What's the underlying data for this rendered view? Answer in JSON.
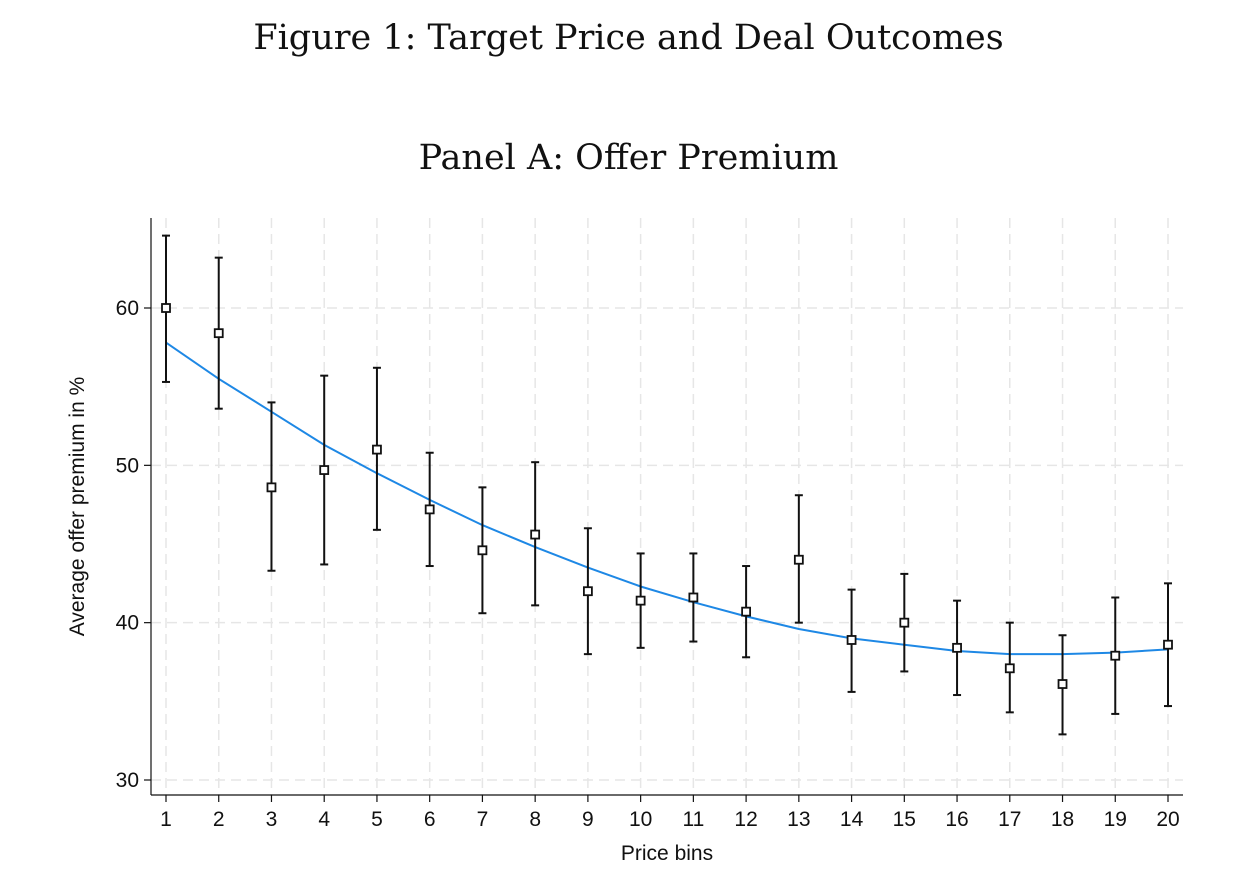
{
  "figure_title": "Figure 1: Target Price and Deal Outcomes",
  "panel_title": "Panel A: Offer Premium",
  "colors": {
    "fit_line": "#1e88e5",
    "points": "#111111",
    "grid": "#e6e6e6"
  },
  "chart_data": {
    "type": "scatter",
    "title": "Panel A: Offer Premium",
    "xlabel": "Price bins",
    "ylabel": "Average offer premium in %",
    "xlim": [
      1,
      20
    ],
    "ylim": [
      30,
      65
    ],
    "x_ticks": [
      1,
      2,
      3,
      4,
      5,
      6,
      7,
      8,
      9,
      10,
      11,
      12,
      13,
      14,
      15,
      16,
      17,
      18,
      19,
      20
    ],
    "y_ticks": [
      30,
      40,
      50,
      60
    ],
    "grid": true,
    "legend": "none",
    "points": [
      {
        "x": 1,
        "y": 60.0,
        "lo": 55.3,
        "hi": 64.6
      },
      {
        "x": 2,
        "y": 58.4,
        "lo": 53.6,
        "hi": 63.2
      },
      {
        "x": 3,
        "y": 48.6,
        "lo": 43.3,
        "hi": 54.0
      },
      {
        "x": 4,
        "y": 49.7,
        "lo": 43.7,
        "hi": 55.7
      },
      {
        "x": 5,
        "y": 51.0,
        "lo": 45.9,
        "hi": 56.2
      },
      {
        "x": 6,
        "y": 47.2,
        "lo": 43.6,
        "hi": 50.8
      },
      {
        "x": 7,
        "y": 44.6,
        "lo": 40.6,
        "hi": 48.6
      },
      {
        "x": 8,
        "y": 45.6,
        "lo": 41.1,
        "hi": 50.2
      },
      {
        "x": 9,
        "y": 42.0,
        "lo": 38.0,
        "hi": 46.0
      },
      {
        "x": 10,
        "y": 41.4,
        "lo": 38.4,
        "hi": 44.4
      },
      {
        "x": 11,
        "y": 41.6,
        "lo": 38.8,
        "hi": 44.4
      },
      {
        "x": 12,
        "y": 40.7,
        "lo": 37.8,
        "hi": 43.6
      },
      {
        "x": 13,
        "y": 44.0,
        "lo": 40.0,
        "hi": 48.1
      },
      {
        "x": 14,
        "y": 38.9,
        "lo": 35.6,
        "hi": 42.1
      },
      {
        "x": 15,
        "y": 40.0,
        "lo": 36.9,
        "hi": 43.1
      },
      {
        "x": 16,
        "y": 38.4,
        "lo": 35.4,
        "hi": 41.4
      },
      {
        "x": 17,
        "y": 37.1,
        "lo": 34.3,
        "hi": 40.0
      },
      {
        "x": 18,
        "y": 36.1,
        "lo": 32.9,
        "hi": 39.2
      },
      {
        "x": 19,
        "y": 37.9,
        "lo": 34.2,
        "hi": 41.6
      },
      {
        "x": 20,
        "y": 38.6,
        "lo": 34.7,
        "hi": 42.5
      }
    ],
    "fit": {
      "type": "quadratic",
      "x": [
        1,
        2,
        3,
        4,
        5,
        6,
        7,
        8,
        9,
        10,
        11,
        12,
        13,
        14,
        15,
        16,
        17,
        18,
        19,
        20
      ],
      "y": [
        57.8,
        55.5,
        53.4,
        51.3,
        49.5,
        47.8,
        46.2,
        44.8,
        43.5,
        42.3,
        41.3,
        40.4,
        39.6,
        39.0,
        38.6,
        38.2,
        38.0,
        38.0,
        38.1,
        38.3
      ]
    }
  }
}
